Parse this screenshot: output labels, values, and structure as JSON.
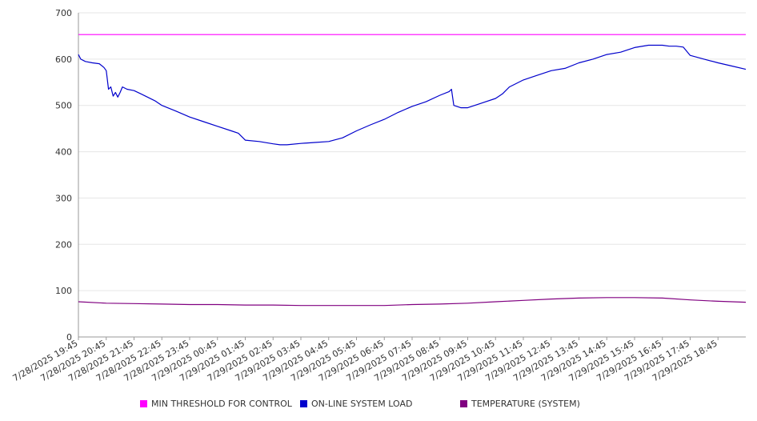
{
  "chart_data": {
    "type": "line",
    "title": "",
    "xlabel": "",
    "ylabel": "",
    "ylim": [
      0,
      700
    ],
    "yticks": [
      0,
      100,
      200,
      300,
      400,
      500,
      600,
      700
    ],
    "grid": true,
    "legend_position": "bottom",
    "x_tick_labels": [
      "7/28/2025 19:45",
      "7/28/2025 20:45",
      "7/28/2025 21:45",
      "7/28/2025 22:45",
      "7/28/2025 23:45",
      "7/29/2025 00:45",
      "7/29/2025 01:45",
      "7/29/2025 02:45",
      "7/29/2025 03:45",
      "7/29/2025 04:45",
      "7/29/2025 05:45",
      "7/29/2025 06:45",
      "7/29/2025 07:45",
      "7/29/2025 08:45",
      "7/29/2025 09:45",
      "7/29/2025 10:45",
      "7/29/2025 11:45",
      "7/29/2025 12:45",
      "7/29/2025 13:45",
      "7/29/2025 14:45",
      "7/29/2025 15:45",
      "7/29/2025 16:45",
      "7/29/2025 17:45",
      "7/29/2025 18:45"
    ],
    "x_start": "7/28/2025 19:45",
    "x_end": "7/29/2025 19:45",
    "series": [
      {
        "name": "MIN THRESHOLD FOR CONTROL",
        "color": "#ff00ff",
        "x": [
          "7/28/2025 19:45",
          "7/29/2025 19:45"
        ],
        "values": [
          653,
          653
        ]
      },
      {
        "name": "ON-LINE SYSTEM LOAD",
        "color": "#0000cc",
        "x": [
          "7/28/2025 19:45",
          "7/28/2025 19:50",
          "7/28/2025 20:00",
          "7/28/2025 20:15",
          "7/28/2025 20:30",
          "7/28/2025 20:40",
          "7/28/2025 20:45",
          "7/28/2025 20:50",
          "7/28/2025 20:55",
          "7/28/2025 21:00",
          "7/28/2025 21:05",
          "7/28/2025 21:10",
          "7/28/2025 21:15",
          "7/28/2025 21:20",
          "7/28/2025 21:30",
          "7/28/2025 21:45",
          "7/28/2025 22:00",
          "7/28/2025 22:30",
          "7/28/2025 22:45",
          "7/28/2025 23:15",
          "7/28/2025 23:45",
          "7/29/2025 00:15",
          "7/29/2025 00:45",
          "7/29/2025 01:15",
          "7/29/2025 01:30",
          "7/29/2025 01:45",
          "7/29/2025 02:15",
          "7/29/2025 02:45",
          "7/29/2025 03:00",
          "7/29/2025 03:15",
          "7/29/2025 03:45",
          "7/29/2025 04:15",
          "7/29/2025 04:45",
          "7/29/2025 05:15",
          "7/29/2025 05:45",
          "7/29/2025 06:15",
          "7/29/2025 06:45",
          "7/29/2025 07:15",
          "7/29/2025 07:45",
          "7/29/2025 08:15",
          "7/29/2025 08:45",
          "7/29/2025 09:05",
          "7/29/2025 09:10",
          "7/29/2025 09:15",
          "7/29/2025 09:30",
          "7/29/2025 09:45",
          "7/29/2025 10:15",
          "7/29/2025 10:45",
          "7/29/2025 11:00",
          "7/29/2025 11:15",
          "7/29/2025 11:45",
          "7/29/2025 12:15",
          "7/29/2025 12:45",
          "7/29/2025 13:15",
          "7/29/2025 13:45",
          "7/29/2025 14:15",
          "7/29/2025 14:45",
          "7/29/2025 15:15",
          "7/29/2025 15:45",
          "7/29/2025 16:15",
          "7/29/2025 16:45",
          "7/29/2025 17:00",
          "7/29/2025 17:15",
          "7/29/2025 17:30",
          "7/29/2025 17:45",
          "7/29/2025 18:15",
          "7/29/2025 18:45",
          "7/29/2025 19:15",
          "7/29/2025 19:45"
        ],
        "values": [
          610,
          600,
          595,
          592,
          590,
          582,
          575,
          535,
          540,
          520,
          528,
          518,
          528,
          540,
          535,
          532,
          525,
          510,
          500,
          488,
          475,
          465,
          455,
          445,
          440,
          425,
          422,
          417,
          415,
          415,
          418,
          420,
          422,
          430,
          445,
          458,
          470,
          485,
          498,
          508,
          522,
          530,
          535,
          500,
          495,
          495,
          505,
          515,
          525,
          540,
          555,
          565,
          575,
          580,
          592,
          600,
          610,
          615,
          625,
          630,
          630,
          628,
          628,
          626,
          608,
          600,
          592,
          585,
          578
        ]
      },
      {
        "name": "TEMPERATURE (SYSTEM)",
        "color": "#800080",
        "x": [
          "7/28/2025 19:45",
          "7/28/2025 20:45",
          "7/28/2025 21:45",
          "7/28/2025 22:45",
          "7/28/2025 23:45",
          "7/29/2025 00:45",
          "7/29/2025 01:45",
          "7/29/2025 02:45",
          "7/29/2025 03:45",
          "7/29/2025 04:45",
          "7/29/2025 05:45",
          "7/29/2025 06:45",
          "7/29/2025 07:45",
          "7/29/2025 08:45",
          "7/29/2025 09:45",
          "7/29/2025 10:45",
          "7/29/2025 11:45",
          "7/29/2025 12:45",
          "7/29/2025 13:45",
          "7/29/2025 14:45",
          "7/29/2025 15:45",
          "7/29/2025 16:45",
          "7/29/2025 17:45",
          "7/29/2025 18:45",
          "7/29/2025 19:45"
        ],
        "values": [
          76,
          73,
          72,
          71,
          70,
          70,
          69,
          69,
          68,
          68,
          68,
          68,
          70,
          71,
          73,
          76,
          79,
          82,
          84,
          85,
          85,
          84,
          80,
          77,
          75
        ]
      }
    ]
  }
}
